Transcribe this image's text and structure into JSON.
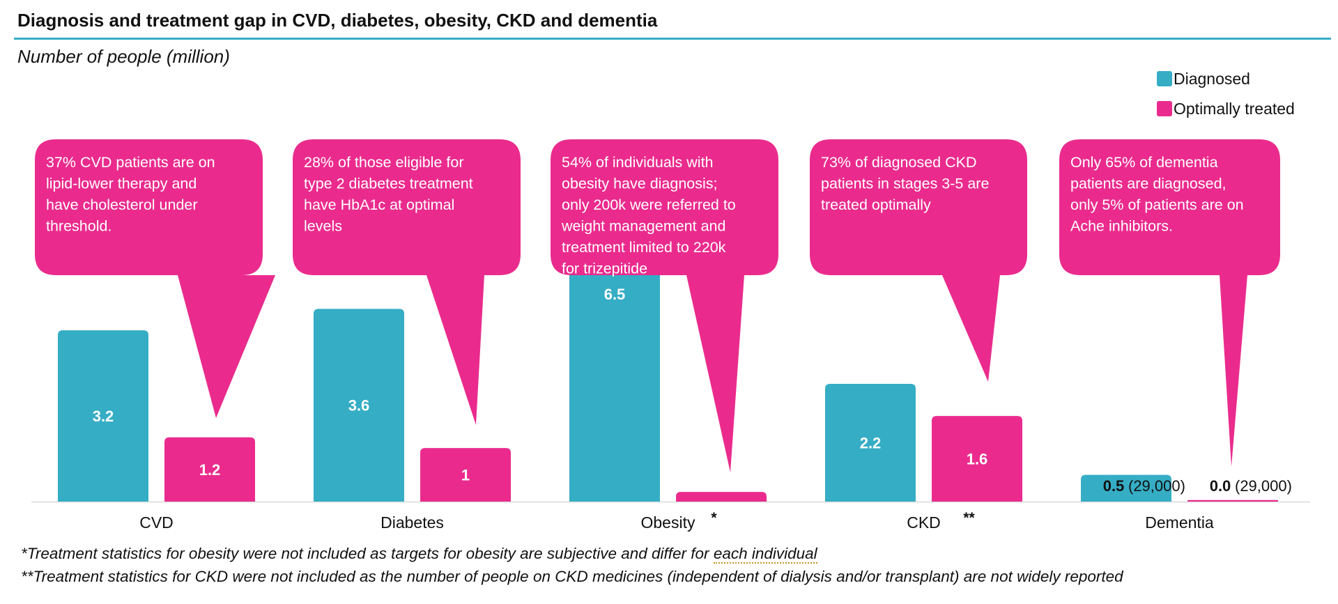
{
  "title": "Diagnosis and treatment gap in CVD, diabetes, obesity, CKD and dementia",
  "notes": {
    "note1_part1": "*Treatment statistics for obesity were not included as targets for obesity are subjective and differ for ",
    "note1_part2": "each individual",
    "note2": "**Treatment statistics for CKD were not included as the number of people on CKD medicines (independent of dialysis and/or transplant) are not widely reported"
  },
  "chart_data": {
    "type": "bar",
    "title": "Diagnosis and treatment gap in CVD, diabetes, obesity, CKD and dementia",
    "ylabel": "Number of people (million)",
    "ylim": [
      0,
      8.2
    ],
    "grid": false,
    "legend_position": "top-right",
    "categories": [
      "CVD",
      "Diabetes",
      "Obesity",
      "CKD",
      "Dementia"
    ],
    "category_suffixes": [
      "",
      "",
      "*",
      "**",
      ""
    ],
    "series": [
      {
        "name": "Diagnosed",
        "color": "#35adc5",
        "values": [
          3.2,
          3.6,
          6.5,
          2.2,
          0.5
        ],
        "labels": [
          "3.2",
          "3.6",
          "6.5",
          "2.2",
          "0.5"
        ]
      },
      {
        "name": "Optimally treated",
        "color": "#ea2b8d",
        "values": [
          1.2,
          1,
          0.18,
          1.6,
          0.029
        ],
        "labels": [
          "1.2",
          "1",
          "",
          "1.6",
          "0.0"
        ]
      }
    ],
    "extra_label": "(29,000)",
    "annotations": [
      "37% CVD patients are on lipid-lower therapy and have cholesterol under threshold.",
      "28% of those eligible for type 2 diabetes treatment have HbA1c at optimal levels",
      "54% of individuals with obesity have  diagnosis; only 200k were referred to weight management  and treatment limited to 220k for trizepitide",
      "73% of diagnosed CKD patients in stages 3-5 are treated optimally",
      "Only 65% of dementia patients are diagnosed, only 5% of patients are on Ache inhibitors."
    ]
  }
}
